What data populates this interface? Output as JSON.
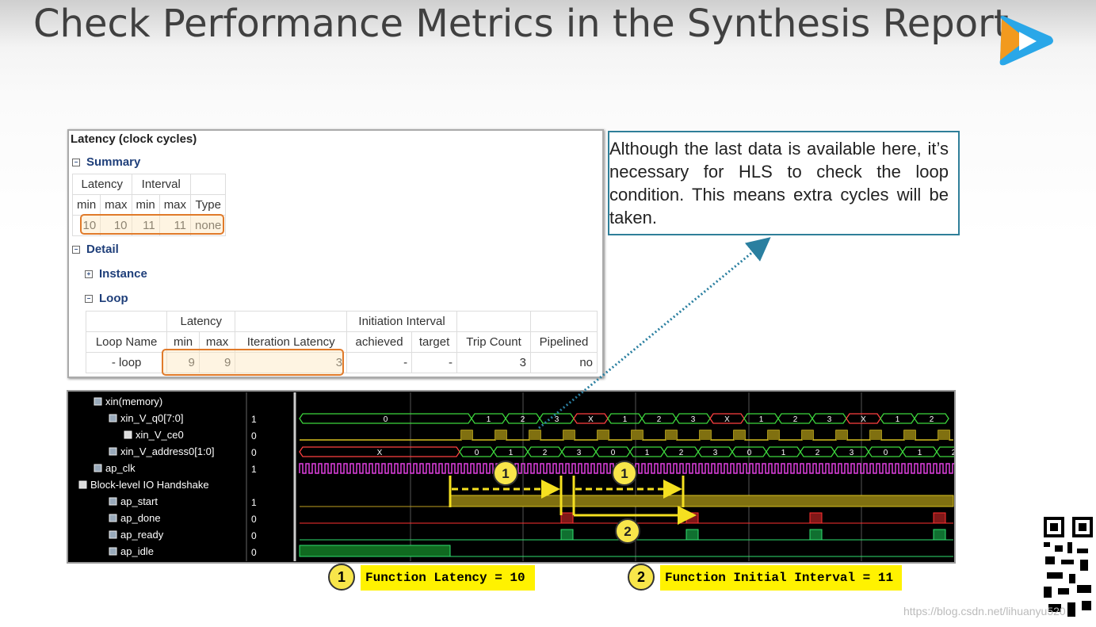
{
  "title": "Check Performance Metrics in the Synthesis Report",
  "report": {
    "heading": "Latency (clock cycles)",
    "summary": {
      "label": "Summary",
      "group_headers": [
        "Latency",
        "Interval"
      ],
      "columns": [
        "min",
        "max",
        "min",
        "max",
        "Type"
      ],
      "row": [
        "10",
        "10",
        "11",
        "11",
        "none"
      ]
    },
    "detail": {
      "label": "Detail",
      "instance": "Instance",
      "loop": "Loop",
      "group_headers": [
        "Latency",
        "Initiation Interval"
      ],
      "columns": [
        "Loop Name",
        "min",
        "max",
        "Iteration Latency",
        "achieved",
        "target",
        "Trip Count",
        "Pipelined"
      ],
      "row": [
        "- loop",
        "9",
        "9",
        "3",
        "-",
        "-",
        "3",
        "no"
      ]
    }
  },
  "callout": "Although the last data is available here, it’s necessary for HLS to check the loop condition. This means extra cycles will be taken.",
  "waveform": {
    "signals": [
      {
        "name": "xin(memory)",
        "level": 1
      },
      {
        "name": "xin_V_q0[7:0]",
        "level": 2,
        "value": "1",
        "bus": [
          "0",
          "1",
          "2",
          "3",
          "X",
          "1",
          "2",
          "3",
          "X",
          "1",
          "2",
          "3",
          "X",
          "1",
          "2"
        ]
      },
      {
        "name": "xin_V_ce0",
        "level": 3,
        "value": "0"
      },
      {
        "name": "xin_V_address0[1:0]",
        "level": 2,
        "value": "0",
        "bus": [
          "X",
          "0",
          "1",
          "2",
          "3",
          "0",
          "1",
          "2",
          "3",
          "0",
          "1",
          "2",
          "3",
          "0",
          "1",
          "2"
        ]
      },
      {
        "name": "ap_clk",
        "level": 1,
        "value": "1"
      },
      {
        "name": "Block-level IO Handshake",
        "level": 0
      },
      {
        "name": "ap_start",
        "level": 2,
        "value": "1"
      },
      {
        "name": "ap_done",
        "level": 2,
        "value": "0"
      },
      {
        "name": "ap_ready",
        "level": 2,
        "value": "0"
      },
      {
        "name": "ap_idle",
        "level": 2,
        "value": "0"
      }
    ],
    "markers": [
      "1",
      "1",
      "2"
    ]
  },
  "legend": [
    {
      "number": "1",
      "text": "Function Latency = 10"
    },
    {
      "number": "2",
      "text": "Function Initial Interval = 11"
    }
  ],
  "watermark": "https://blog.csdn.net/lihuanyu520"
}
